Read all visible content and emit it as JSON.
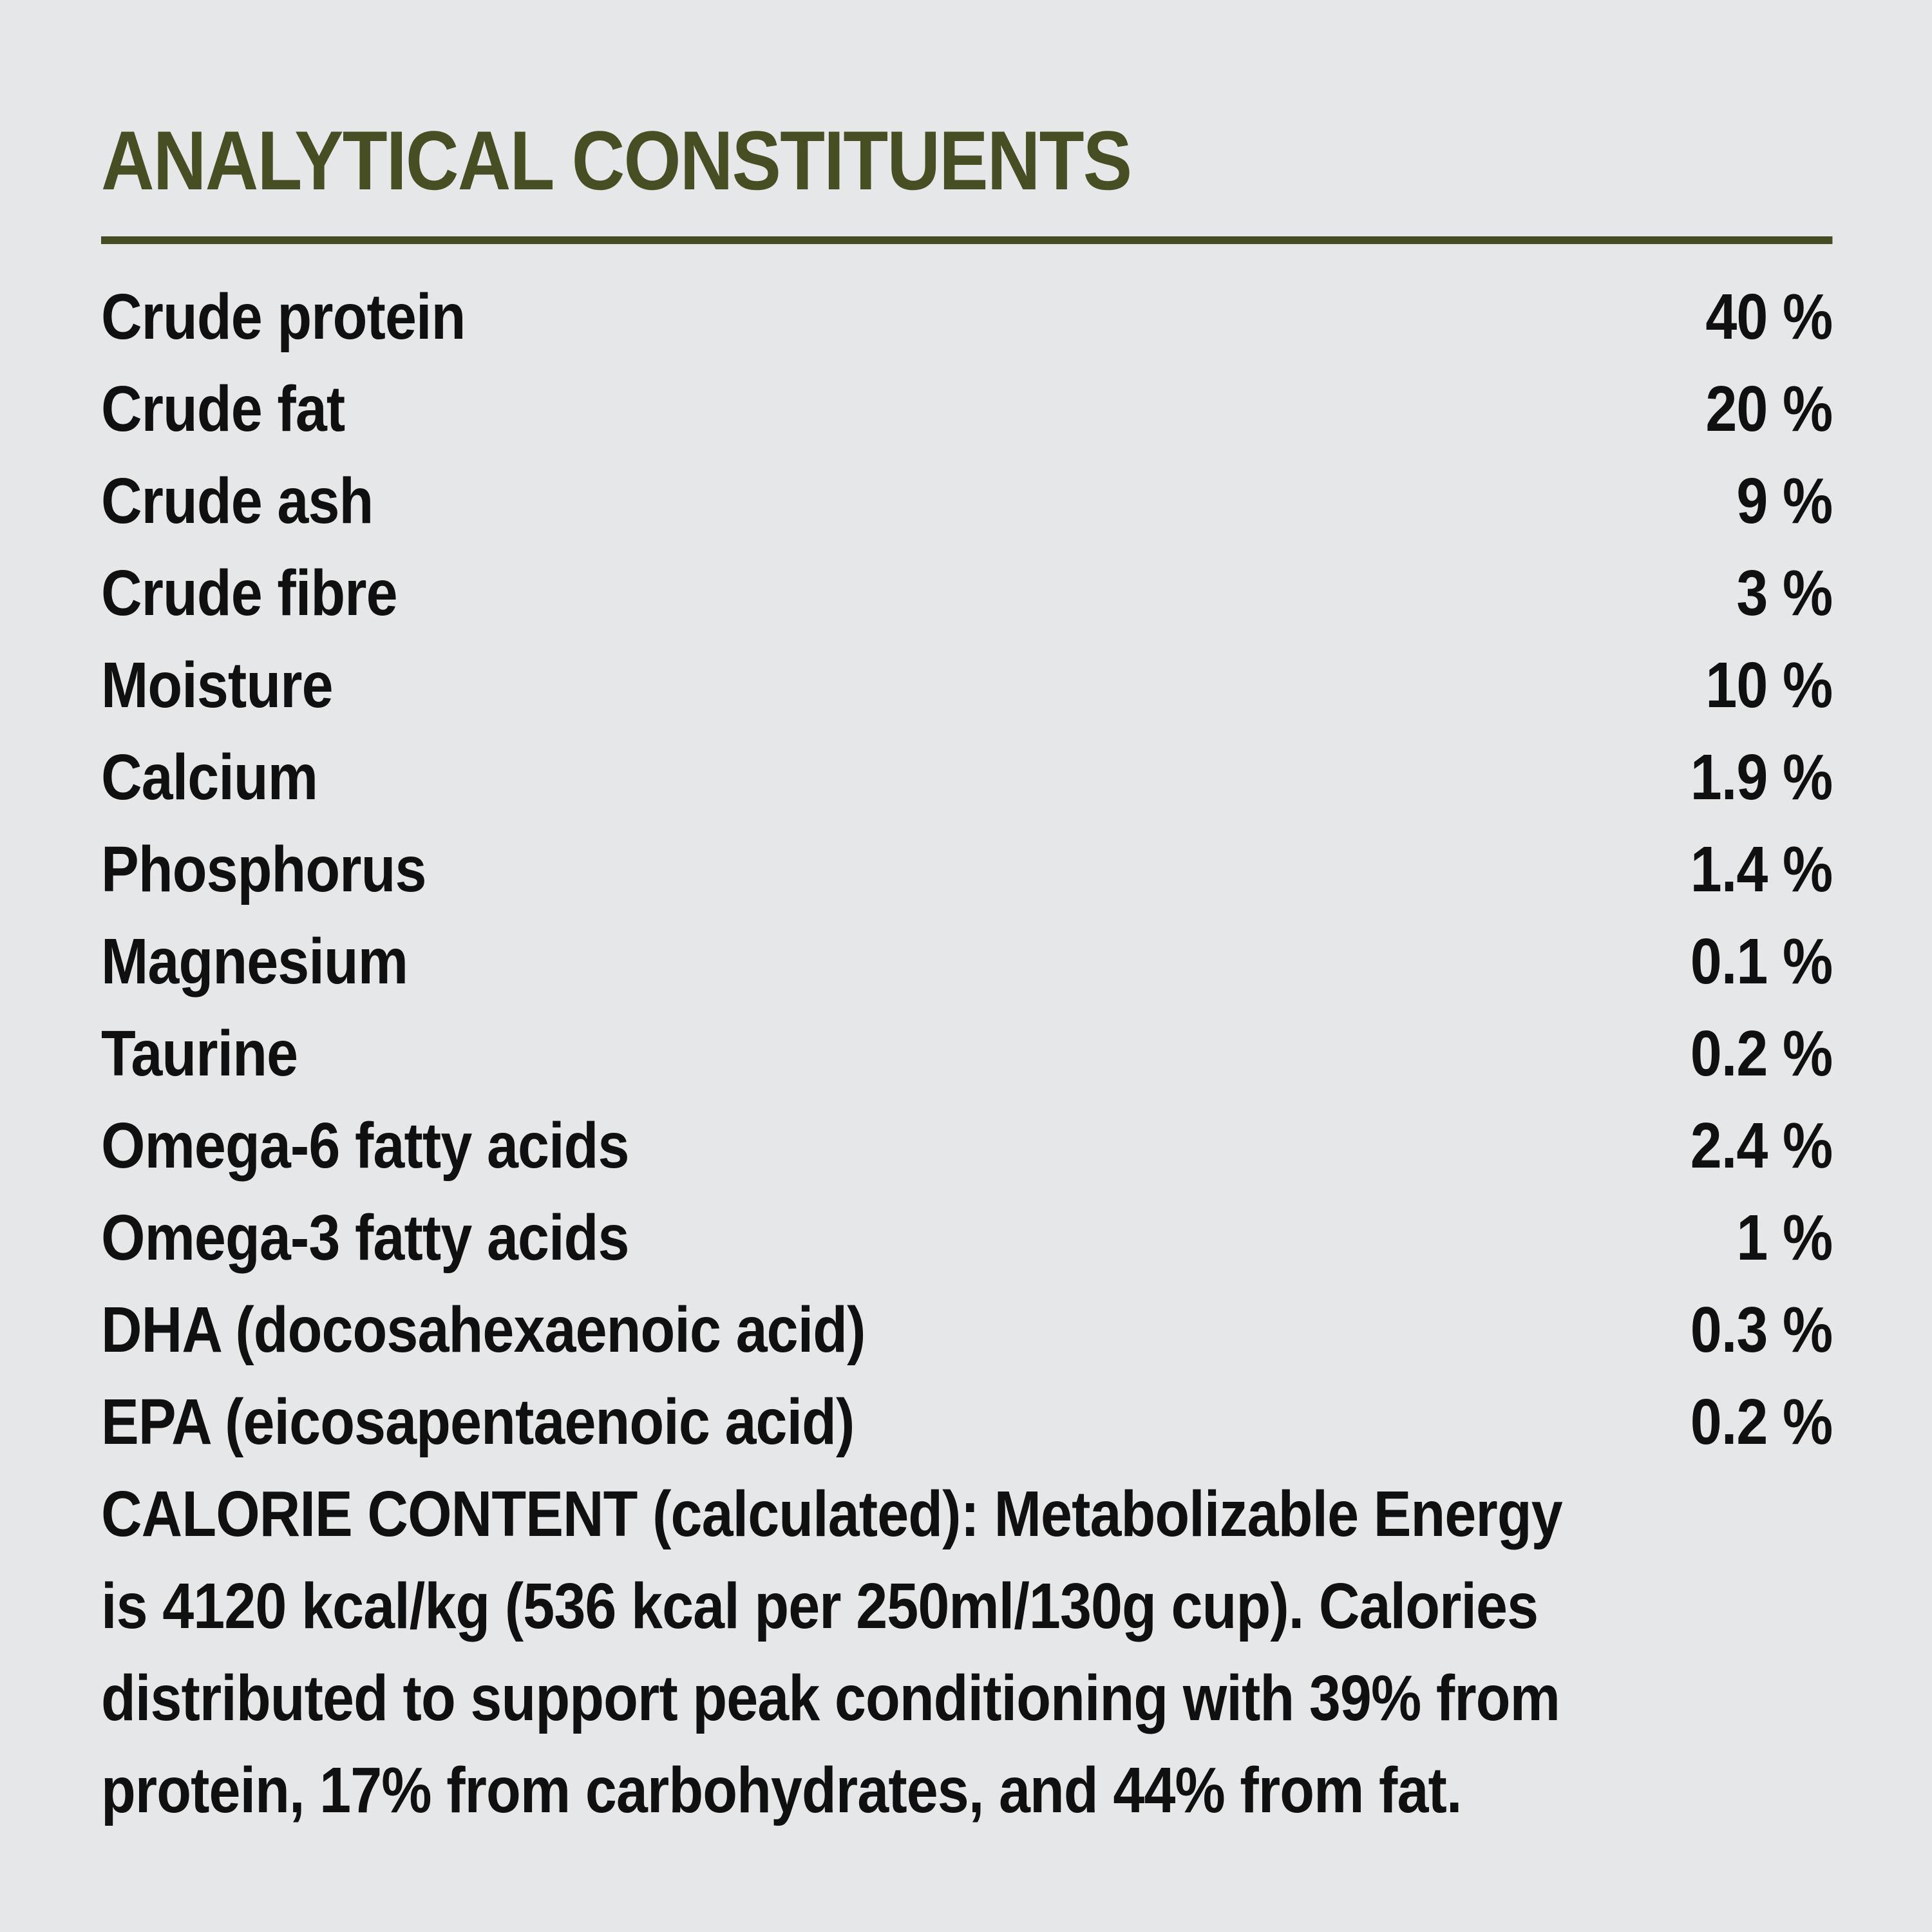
{
  "page": {
    "background_color": "#e6e7e8",
    "accent_color": "#484e24",
    "text_color": "#101010"
  },
  "header": {
    "title": "ANALYTICAL CONSTITUENTS"
  },
  "table": {
    "rows": [
      {
        "label": "Crude protein",
        "value": "40 %"
      },
      {
        "label": "Crude fat",
        "value": "20 %"
      },
      {
        "label": "Crude ash",
        "value": "9 %"
      },
      {
        "label": "Crude fibre",
        "value": "3 %"
      },
      {
        "label": "Moisture",
        "value": "10 %"
      },
      {
        "label": "Calcium",
        "value": "1.9 %"
      },
      {
        "label": "Phosphorus",
        "value": "1.4 %"
      },
      {
        "label": "Magnesium",
        "value": "0.1 %"
      },
      {
        "label": "Taurine",
        "value": "0.2 %"
      },
      {
        "label": "Omega-6 fatty acids",
        "value": "2.4 %"
      },
      {
        "label": "Omega-3 fatty acids",
        "value": "1 %"
      },
      {
        "label": "DHA (docosahexaenoic acid)",
        "value": "0.3 %"
      },
      {
        "label": "EPA (eicosapentaenoic acid)",
        "value": "0.2 %"
      }
    ]
  },
  "calorie_note": {
    "line1": "CALORIE CONTENT (calculated): Metabolizable Energy",
    "line2": "is 4120 kcal/kg (536 kcal per 250ml/130g cup). Calories",
    "line3": "distributed to support peak conditioning with 39% from",
    "line4": "protein, 17% from carbohydrates, and 44% from fat."
  }
}
